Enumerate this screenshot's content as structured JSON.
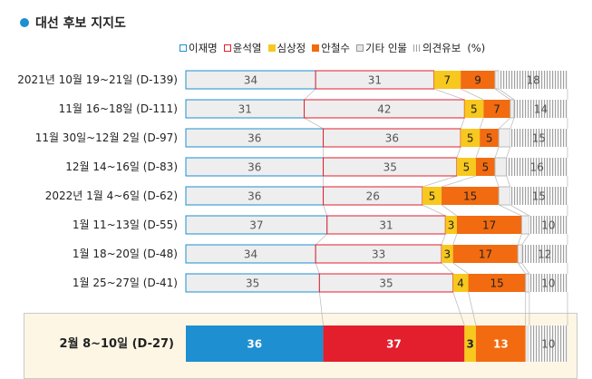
{
  "title": "대선 후보 지지도",
  "unit_label": "(%)",
  "chart_data": {
    "type": "bar",
    "orientation": "horizontal",
    "stacked": true,
    "title": "대선 후보 지지도",
    "unit": "(%)",
    "legend_position": "top",
    "categories": [
      "2021년 10월 19~21일 (D-139)",
      "11월 16~18일 (D-111)",
      "11월 30일~12월 2일 (D-97)",
      "12월 14~16일 (D-83)",
      "2022년 1월 4~6일 (D-62)",
      "1월 11~13일 (D-55)",
      "1월 18~20일 (D-48)",
      "1월 25~27일 (D-41)",
      "2월 8~10일 (D-27)"
    ],
    "highlight_index": 8,
    "series": [
      {
        "name": "이재명",
        "color": "#1e8fd0",
        "values": [
          34,
          31,
          36,
          36,
          36,
          37,
          34,
          35,
          36
        ]
      },
      {
        "name": "윤석열",
        "color": "#e31e2d",
        "values": [
          31,
          42,
          36,
          35,
          26,
          31,
          33,
          35,
          37
        ]
      },
      {
        "name": "심상정",
        "color": "#f7c81e",
        "values": [
          7,
          5,
          5,
          5,
          5,
          3,
          3,
          4,
          3
        ]
      },
      {
        "name": "안철수",
        "color": "#f26b10",
        "values": [
          9,
          7,
          5,
          5,
          15,
          17,
          17,
          15,
          13
        ]
      },
      {
        "name": "기타 인물",
        "color": "#e6e6e6",
        "values": [
          1,
          1,
          3,
          3,
          3,
          2,
          1,
          1,
          1
        ]
      },
      {
        "name": "의견유보",
        "color": "#a0a0a0",
        "values": [
          18,
          14,
          15,
          16,
          15,
          10,
          12,
          10,
          10
        ]
      }
    ]
  }
}
